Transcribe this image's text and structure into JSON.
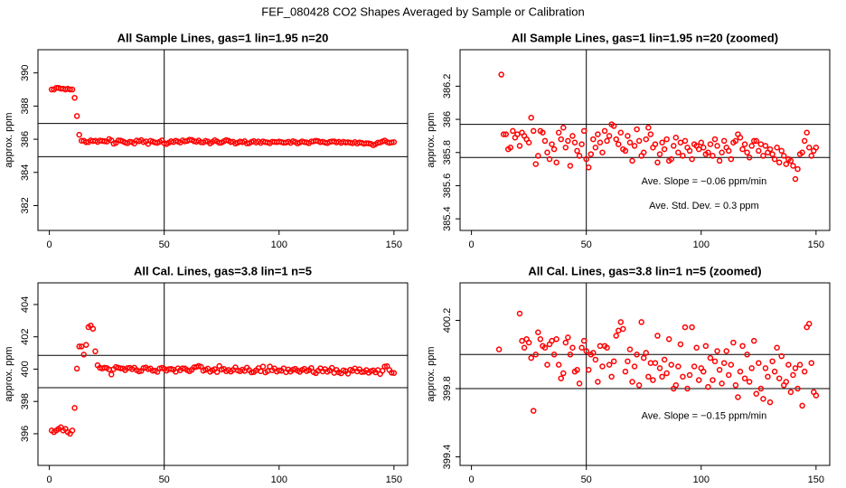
{
  "title": "FEF_080428  CO2 Shapes Averaged by Sample or Calibration",
  "chart_data": [
    {
      "type": "scatter",
      "title": "All Sample Lines, gas=1 lin=1.95 n=20",
      "ylabel": "approx. ppm",
      "color": "#ff0000",
      "xlim": [
        -4.96,
        155.96
      ],
      "ylim": [
        380.5,
        391.4
      ],
      "xticks": [
        0,
        50,
        100,
        150
      ],
      "yticks": [
        382,
        384,
        386,
        388,
        390
      ],
      "hlines": [
        386.95,
        384.95
      ],
      "vline": 50,
      "annotations": [],
      "x": [
        1,
        2,
        3,
        4,
        5,
        6,
        7,
        8,
        9,
        10,
        11,
        12,
        13,
        14,
        15,
        16,
        17,
        18,
        19,
        20,
        21,
        22,
        23,
        24,
        25,
        26,
        27,
        28,
        29,
        30,
        31,
        32,
        33,
        34,
        35,
        36,
        37,
        38,
        39,
        40,
        41,
        42,
        43,
        44,
        45,
        46,
        47,
        48,
        49,
        50,
        51,
        52,
        53,
        54,
        55,
        56,
        57,
        58,
        59,
        60,
        61,
        62,
        63,
        64,
        65,
        66,
        67,
        68,
        69,
        70,
        71,
        72,
        73,
        74,
        75,
        76,
        77,
        78,
        79,
        80,
        81,
        82,
        83,
        84,
        85,
        86,
        87,
        88,
        89,
        90,
        91,
        92,
        93,
        94,
        95,
        96,
        97,
        98,
        99,
        100,
        101,
        102,
        103,
        104,
        105,
        106,
        107,
        108,
        109,
        110,
        111,
        112,
        113,
        114,
        115,
        116,
        117,
        118,
        119,
        120,
        121,
        122,
        123,
        124,
        125,
        126,
        127,
        128,
        129,
        130,
        131,
        132,
        133,
        134,
        135,
        136,
        137,
        138,
        139,
        140,
        141,
        142,
        143,
        144,
        145,
        146,
        147,
        148,
        149,
        150
      ],
      "values": [
        389,
        389,
        389.1,
        389.1,
        389.05,
        389.05,
        389,
        389.05,
        389,
        389,
        388.5,
        387.4,
        386.27,
        385.91,
        385.91,
        385.82,
        385.83,
        385.93,
        385.89,
        385.91,
        385.84,
        385.92,
        385.9,
        385.88,
        385.86,
        386.01,
        385.93,
        385.73,
        385.78,
        385.93,
        385.92,
        385.87,
        385.8,
        385.76,
        385.85,
        385.82,
        385.74,
        385.92,
        385.88,
        385.95,
        385.83,
        385.87,
        385.72,
        385.9,
        385.86,
        385.81,
        385.78,
        385.85,
        385.93,
        385.76,
        385.71,
        385.79,
        385.88,
        385.83,
        385.91,
        385.86,
        385.8,
        385.93,
        385.87,
        385.9,
        385.97,
        385.96,
        385.88,
        385.85,
        385.92,
        385.82,
        385.81,
        385.9,
        385.86,
        385.75,
        385.84,
        385.94,
        385.87,
        385.78,
        385.8,
        385.88,
        385.95,
        385.91,
        385.83,
        385.85,
        385.74,
        385.79,
        385.86,
        385.82,
        385.88,
        385.75,
        385.76,
        385.84,
        385.89,
        385.8,
        385.86,
        385.78,
        385.87,
        385.83,
        385.81,
        385.76,
        385.85,
        385.84,
        385.82,
        385.86,
        385.83,
        385.79,
        385.8,
        385.85,
        385.78,
        385.88,
        385.84,
        385.75,
        385.8,
        385.87,
        385.83,
        385.81,
        385.76,
        385.86,
        385.87,
        385.91,
        385.89,
        385.82,
        385.85,
        385.8,
        385.77,
        385.84,
        385.87,
        385.87,
        385.81,
        385.85,
        385.78,
        385.84,
        385.8,
        385.82,
        385.79,
        385.76,
        385.83,
        385.74,
        385.81,
        385.78,
        385.73,
        385.76,
        385.75,
        385.72,
        385.64,
        385.7,
        385.79,
        385.8,
        385.87,
        385.92,
        385.83,
        385.78,
        385.81,
        385.83
      ]
    },
    {
      "type": "scatter",
      "title": "All Sample Lines, gas=1 lin=1.95 n=20 (zoomed)",
      "ylabel": "approx. ppm",
      "color": "#ff0000",
      "xlim": [
        -4.96,
        155.96
      ],
      "ylim": [
        385.33,
        386.42
      ],
      "xticks": [
        0,
        50,
        100,
        150
      ],
      "yticks": [
        385.4,
        385.6,
        385.8,
        386,
        386.2
      ],
      "hlines": [
        385.97,
        385.77
      ],
      "vline": 50,
      "annotations": [
        "Ave. Slope = −0.06  ppm/min",
        "Ave. Std. Dev. = 0.3  ppm"
      ],
      "x": [
        13,
        14,
        15,
        16,
        17,
        18,
        19,
        20,
        21,
        22,
        23,
        24,
        25,
        26,
        27,
        28,
        29,
        30,
        31,
        32,
        33,
        34,
        35,
        36,
        37,
        38,
        39,
        40,
        41,
        42,
        43,
        44,
        45,
        46,
        47,
        48,
        49,
        50,
        51,
        52,
        53,
        54,
        55,
        56,
        57,
        58,
        59,
        60,
        61,
        62,
        63,
        64,
        65,
        66,
        67,
        68,
        69,
        70,
        71,
        72,
        73,
        74,
        75,
        76,
        77,
        78,
        79,
        80,
        81,
        82,
        83,
        84,
        85,
        86,
        87,
        88,
        89,
        90,
        91,
        92,
        93,
        94,
        95,
        96,
        97,
        98,
        99,
        100,
        101,
        102,
        103,
        104,
        105,
        106,
        107,
        108,
        109,
        110,
        111,
        112,
        113,
        114,
        115,
        116,
        117,
        118,
        119,
        120,
        121,
        122,
        123,
        124,
        125,
        126,
        127,
        128,
        129,
        130,
        131,
        132,
        133,
        134,
        135,
        136,
        137,
        138,
        139,
        140,
        141,
        142,
        143,
        144,
        145,
        146,
        147,
        148,
        149,
        150
      ],
      "values": [
        386.27,
        385.91,
        385.91,
        385.82,
        385.83,
        385.93,
        385.89,
        385.91,
        385.84,
        385.92,
        385.9,
        385.88,
        385.86,
        386.01,
        385.93,
        385.73,
        385.78,
        385.93,
        385.92,
        385.87,
        385.8,
        385.76,
        385.85,
        385.82,
        385.74,
        385.92,
        385.88,
        385.95,
        385.83,
        385.87,
        385.72,
        385.9,
        385.86,
        385.81,
        385.78,
        385.85,
        385.93,
        385.76,
        385.71,
        385.79,
        385.88,
        385.83,
        385.91,
        385.86,
        385.8,
        385.93,
        385.87,
        385.9,
        385.97,
        385.96,
        385.88,
        385.85,
        385.92,
        385.82,
        385.81,
        385.9,
        385.86,
        385.75,
        385.84,
        385.94,
        385.87,
        385.78,
        385.8,
        385.88,
        385.95,
        385.91,
        385.83,
        385.85,
        385.74,
        385.79,
        385.86,
        385.82,
        385.88,
        385.75,
        385.76,
        385.84,
        385.89,
        385.8,
        385.86,
        385.78,
        385.87,
        385.83,
        385.81,
        385.76,
        385.85,
        385.84,
        385.82,
        385.86,
        385.83,
        385.79,
        385.8,
        385.85,
        385.78,
        385.88,
        385.84,
        385.75,
        385.8,
        385.87,
        385.83,
        385.81,
        385.76,
        385.86,
        385.87,
        385.91,
        385.89,
        385.82,
        385.85,
        385.8,
        385.77,
        385.84,
        385.87,
        385.87,
        385.81,
        385.85,
        385.78,
        385.84,
        385.8,
        385.82,
        385.79,
        385.76,
        385.83,
        385.74,
        385.81,
        385.78,
        385.73,
        385.76,
        385.75,
        385.72,
        385.64,
        385.7,
        385.79,
        385.8,
        385.87,
        385.92,
        385.83,
        385.78,
        385.81,
        385.83
      ]
    },
    {
      "type": "scatter",
      "title": "All Cal. Lines, gas=3.8 lin=1 n=5",
      "ylabel": "approx. ppm",
      "color": "#ff0000",
      "xlim": [
        -4.96,
        155.96
      ],
      "ylim": [
        394.04,
        405.34
      ],
      "xticks": [
        0,
        50,
        100,
        150
      ],
      "yticks": [
        396,
        398,
        400,
        402,
        404
      ],
      "hlines": [
        400.85,
        398.85
      ],
      "vline": 50,
      "annotations": [],
      "x": [
        1,
        2,
        3,
        4,
        5,
        6,
        7,
        8,
        9,
        10,
        11,
        12,
        13,
        14,
        15,
        16,
        17,
        18,
        19,
        20,
        21,
        22,
        23,
        24,
        25,
        26,
        27,
        28,
        29,
        30,
        31,
        32,
        33,
        34,
        35,
        36,
        37,
        38,
        39,
        40,
        41,
        42,
        43,
        44,
        45,
        46,
        47,
        48,
        49,
        50,
        51,
        52,
        53,
        54,
        55,
        56,
        57,
        58,
        59,
        60,
        61,
        62,
        63,
        64,
        65,
        66,
        67,
        68,
        69,
        70,
        71,
        72,
        73,
        74,
        75,
        76,
        77,
        78,
        79,
        80,
        81,
        82,
        83,
        84,
        85,
        86,
        87,
        88,
        89,
        90,
        91,
        92,
        93,
        94,
        95,
        96,
        97,
        98,
        99,
        100,
        101,
        102,
        103,
        104,
        105,
        106,
        107,
        108,
        109,
        110,
        111,
        112,
        113,
        114,
        115,
        116,
        117,
        118,
        119,
        120,
        121,
        122,
        123,
        124,
        125,
        126,
        127,
        128,
        129,
        130,
        131,
        132,
        133,
        134,
        135,
        136,
        137,
        138,
        139,
        140,
        141,
        142,
        143,
        144,
        145,
        146,
        147,
        148,
        149,
        150
      ],
      "values": [
        396.2,
        396.1,
        396.2,
        396.3,
        396.4,
        396.2,
        396.3,
        396.1,
        396,
        396.2,
        397.6,
        400.03,
        401.4,
        401.4,
        400.9,
        401.5,
        402.6,
        402.7,
        402.5,
        401.1,
        400.24,
        400.08,
        400.04,
        400.09,
        400.07,
        399.98,
        399.67,
        400,
        400.13,
        400.09,
        400.05,
        400.04,
        399.94,
        400.06,
        400.08,
        400,
        400.09,
        399.94,
        399.86,
        399.89,
        400.07,
        400.1,
        400,
        400.04,
        399.9,
        399.91,
        399.83,
        400.04,
        400.08,
        400.02,
        399.91,
        400,
        400.01,
        399.97,
        399.84,
        400.05,
        399.93,
        400.05,
        400.04,
        399.94,
        399.87,
        399.96,
        400.11,
        400.14,
        400.19,
        400.15,
        399.9,
        399.96,
        400.03,
        399.84,
        399.93,
        400,
        399.82,
        400.19,
        399.98,
        400.01,
        399.87,
        399.95,
        399.85,
        399.95,
        400.11,
        399.92,
        399.87,
        399.97,
        399.89,
        400.09,
        399.94,
        399.8,
        399.82,
        399.93,
        400.06,
        399.87,
        400.16,
        399.8,
        399.88,
        400.16,
        399.93,
        400.04,
        399.85,
        399.92,
        399.9,
        400.05,
        399.81,
        399.98,
        399.85,
        399.96,
        400.02,
        399.91,
        399.83,
        399.95,
        400.02,
        399.88,
        399.94,
        400.07,
        399.82,
        399.75,
        399.9,
        400.05,
        399.86,
        400,
        399.84,
        399.92,
        400.08,
        399.77,
        399.95,
        399.8,
        399.74,
        399.92,
        399.87,
        399.72,
        399.96,
        399.9,
        400.04,
        399.86,
        399.99,
        399.82,
        399.84,
        399.94,
        399.78,
        399.88,
        399.92,
        399.8,
        399.94,
        399.7,
        399.9,
        400.16,
        400.18,
        399.95,
        399.78,
        399.76
      ]
    },
    {
      "type": "scatter",
      "title": "All Cal. Lines, gas=3.8 lin=1 n=5 (zoomed)",
      "ylabel": "approx. ppm",
      "color": "#ff0000",
      "xlim": [
        -4.96,
        155.96
      ],
      "ylim": [
        399.35,
        400.42
      ],
      "xticks": [
        0,
        50,
        100,
        150
      ],
      "yticks": [
        399.4,
        399.8,
        400.2
      ],
      "hlines": [
        400,
        399.8
      ],
      "vline": 50,
      "annotations": [
        "Ave. Slope = −0.15  ppm/min"
      ],
      "x": [
        12,
        21,
        22,
        23,
        24,
        25,
        26,
        27,
        28,
        29,
        30,
        31,
        32,
        33,
        34,
        35,
        36,
        37,
        38,
        39,
        40,
        41,
        42,
        43,
        44,
        45,
        46,
        47,
        48,
        49,
        50,
        51,
        52,
        53,
        54,
        55,
        56,
        57,
        58,
        59,
        60,
        61,
        62,
        63,
        64,
        65,
        66,
        67,
        68,
        69,
        70,
        71,
        72,
        73,
        74,
        75,
        76,
        77,
        78,
        79,
        80,
        81,
        82,
        83,
        84,
        85,
        86,
        87,
        88,
        89,
        90,
        91,
        92,
        93,
        94,
        95,
        96,
        97,
        98,
        99,
        100,
        101,
        102,
        103,
        104,
        105,
        106,
        107,
        108,
        109,
        110,
        111,
        112,
        113,
        114,
        115,
        116,
        117,
        118,
        119,
        120,
        121,
        122,
        123,
        124,
        125,
        126,
        127,
        128,
        129,
        130,
        131,
        132,
        133,
        134,
        135,
        136,
        137,
        138,
        139,
        140,
        141,
        142,
        143,
        144,
        145,
        146,
        147,
        148,
        149,
        150
      ],
      "values": [
        400.03,
        400.24,
        400.08,
        400.04,
        400.09,
        400.07,
        399.98,
        399.67,
        400,
        400.13,
        400.09,
        400.05,
        400.04,
        399.94,
        400.06,
        400.08,
        400,
        400.09,
        399.94,
        399.86,
        399.89,
        400.07,
        400.1,
        400,
        400.04,
        399.9,
        399.91,
        399.83,
        400.04,
        400.08,
        400.02,
        399.91,
        400,
        400.01,
        399.97,
        399.84,
        400.05,
        399.93,
        400.05,
        400.04,
        399.94,
        399.87,
        399.96,
        400.11,
        400.14,
        400.19,
        400.15,
        399.9,
        399.96,
        400.03,
        399.84,
        399.93,
        400,
        399.82,
        400.19,
        399.98,
        400.01,
        399.87,
        399.95,
        399.85,
        399.95,
        400.11,
        399.92,
        399.87,
        399.97,
        399.89,
        400.09,
        399.94,
        399.8,
        399.82,
        399.93,
        400.06,
        399.87,
        400.16,
        399.8,
        399.88,
        400.16,
        399.93,
        400.04,
        399.85,
        399.92,
        399.9,
        400.05,
        399.81,
        399.98,
        399.85,
        399.96,
        400.02,
        399.91,
        399.83,
        399.95,
        400.02,
        399.88,
        399.94,
        400.07,
        399.82,
        399.75,
        399.9,
        400.05,
        399.86,
        400,
        399.84,
        399.92,
        400.08,
        399.77,
        399.95,
        399.8,
        399.74,
        399.92,
        399.87,
        399.72,
        399.96,
        399.9,
        400.04,
        399.86,
        399.99,
        399.82,
        399.84,
        399.94,
        399.78,
        399.88,
        399.92,
        399.8,
        399.94,
        399.7,
        399.9,
        400.16,
        400.18,
        399.95,
        399.78,
        399.76
      ]
    }
  ]
}
